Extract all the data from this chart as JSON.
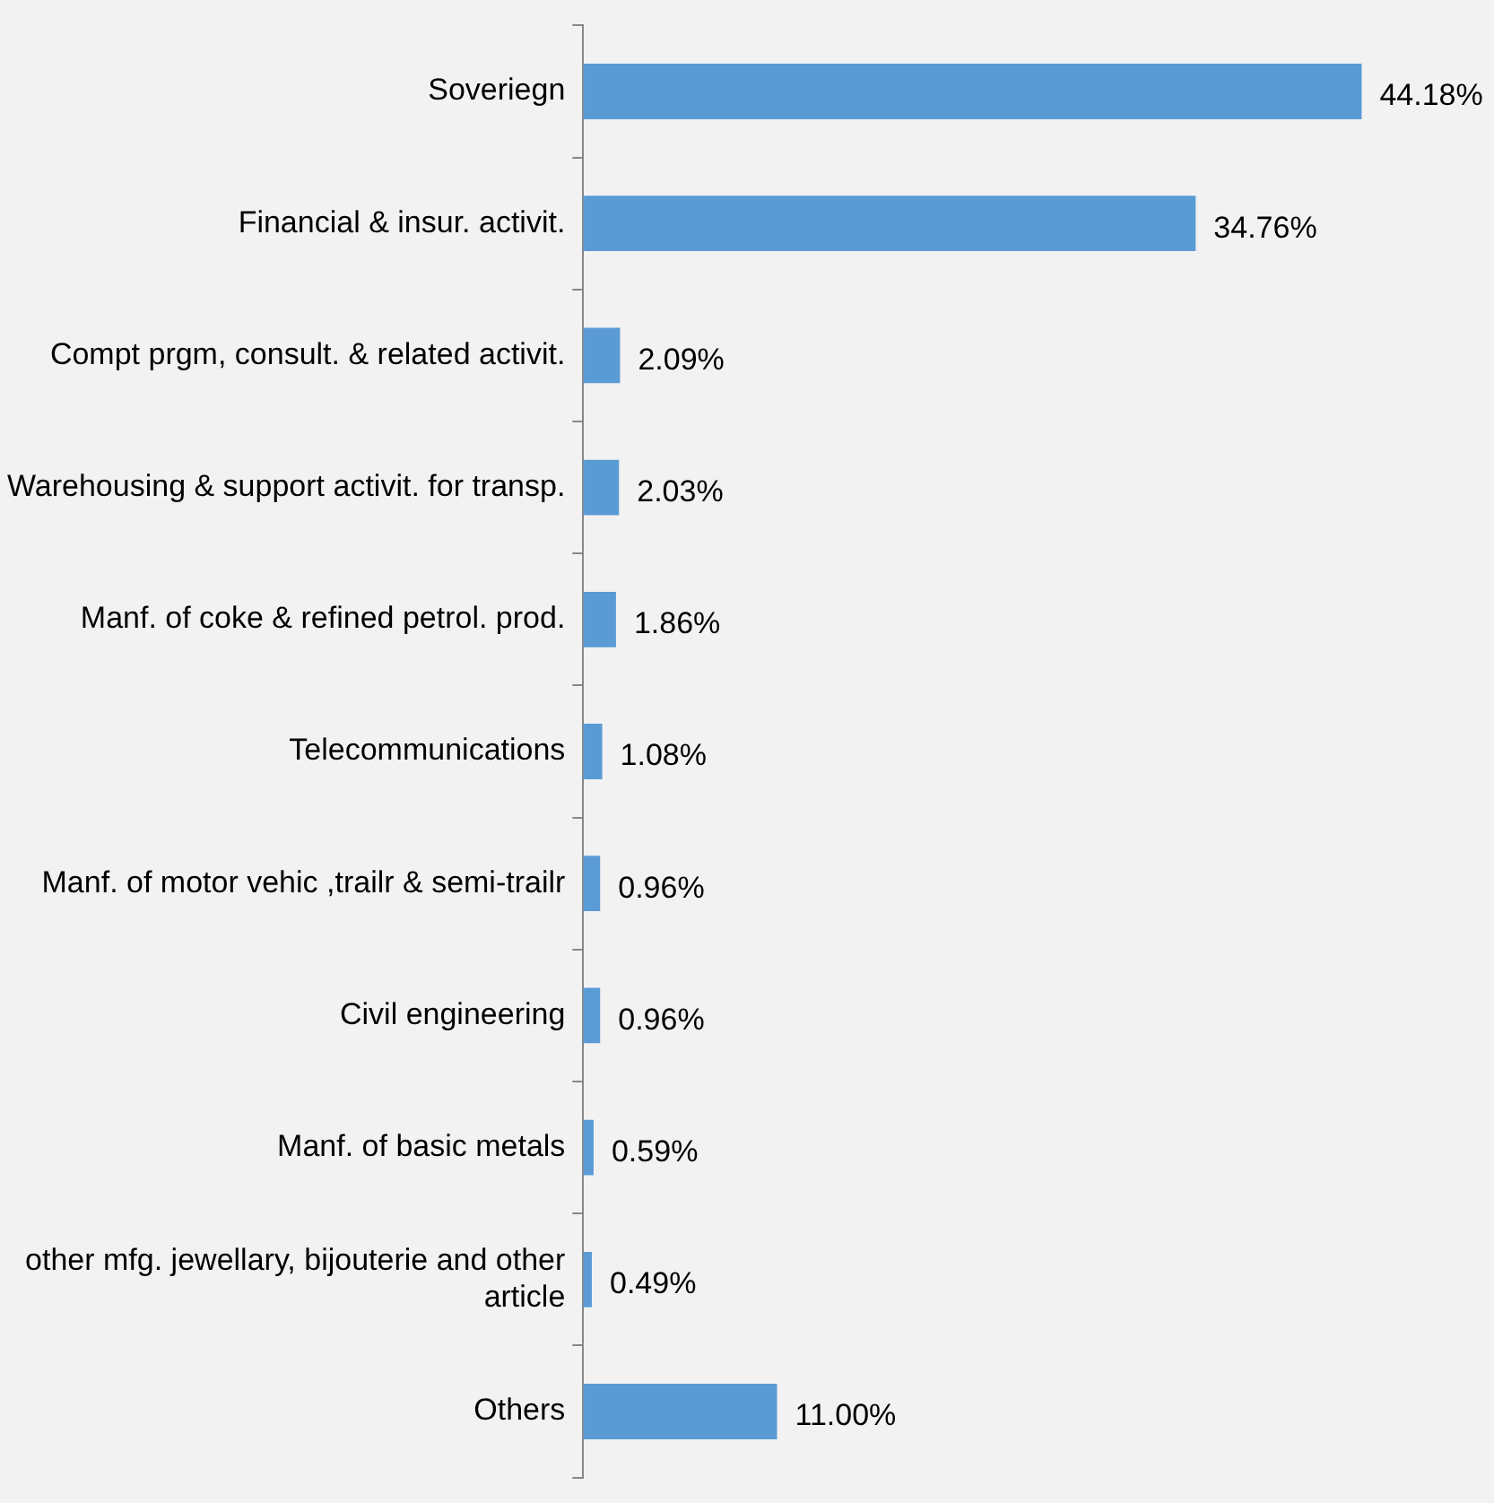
{
  "chart_data": {
    "type": "bar",
    "orientation": "horizontal",
    "categories": [
      "Soveriegn",
      "Financial & insur. activit.",
      "Compt prgm, consult. & related activit.",
      "Warehousing & support activit. for transp.",
      "Manf. of coke & refined petrol. prod.",
      "Telecommunications",
      "Manf. of motor vehic ,trailr & semi-trailr",
      "Civil engineering",
      "Manf. of basic metals",
      "other mfg. jewellary, bijouterie and other article",
      "Others"
    ],
    "values": [
      44.18,
      34.76,
      2.09,
      2.03,
      1.86,
      1.08,
      0.96,
      0.96,
      0.59,
      0.49,
      11.0
    ],
    "value_labels": [
      "44.18%",
      "34.76%",
      "2.09%",
      "2.03%",
      "1.86%",
      "1.08%",
      "0.96%",
      "0.96%",
      "0.59%",
      "0.49%",
      "11.00%"
    ],
    "color": "#5b9bd5",
    "legend": false
  }
}
